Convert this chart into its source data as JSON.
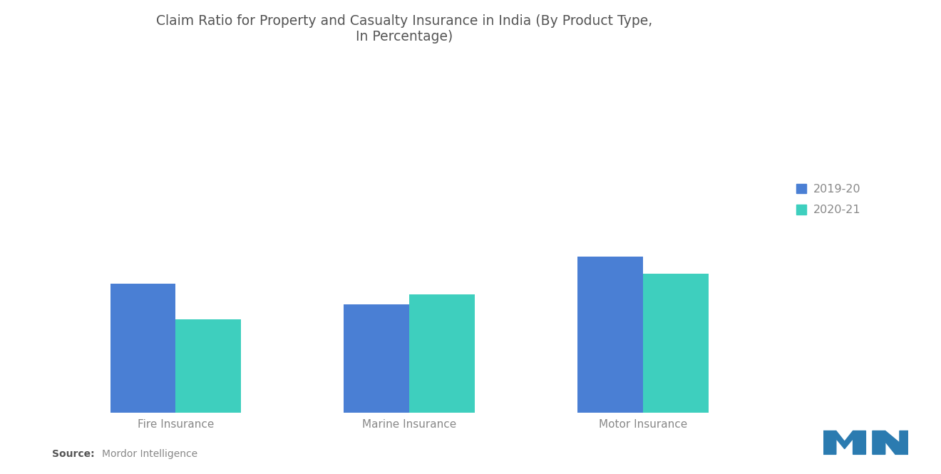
{
  "title": "Claim Ratio for Property and Casualty Insurance in India (By Product Type,\nIn Percentage)",
  "categories": [
    "Fire Insurance",
    "Marine Insurance",
    "Motor Insurance"
  ],
  "values_2019": [
    62,
    52,
    75
  ],
  "values_2020": [
    45,
    57,
    67
  ],
  "color_2019": "#4A7FD4",
  "color_2020": "#3ECFBE",
  "legend_labels": [
    "2019-20",
    "2020-21"
  ],
  "source_bold": "Source:",
  "source_normal": "  Mordor Intelligence",
  "background_color": "#FFFFFF",
  "title_fontsize": 13.5,
  "label_fontsize": 11,
  "bar_width": 0.28,
  "ylim": [
    0,
    160
  ],
  "logo_color": "#2B7BB0"
}
